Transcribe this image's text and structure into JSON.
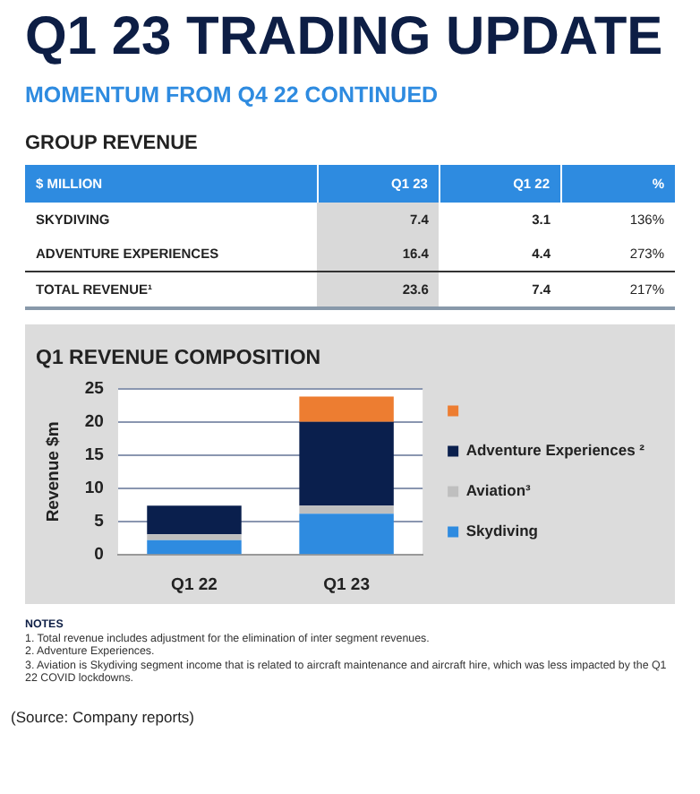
{
  "chart_data": [
    {
      "type": "other",
      "title": "Q1 23 TRADING UPDATE",
      "subtitle": "MOMENTUM FROM Q4 22 CONTINUED",
      "annotations": [
        "GROUP REVENUE"
      ],
      "categories": [
        "$ MILLION",
        "Q1 23",
        "Q1 22",
        "%"
      ],
      "y_categories": [
        "SKYDIVING",
        "ADVENTURE EXPERIENCES",
        "TOTAL REVENUE¹"
      ],
      "cell_labels": [
        [
          "7.4",
          "3.1",
          "136%"
        ],
        [
          "16.4",
          "4.4",
          "273%"
        ],
        [
          "23.6",
          "7.4",
          "217%"
        ]
      ]
    },
    {
      "type": "bar",
      "title": "Q1 REVENUE COMPOSITION",
      "ylabel": "Revenue $m",
      "categories": [
        "Q1 22",
        "Q1 23"
      ],
      "stacked": true,
      "series": [
        {
          "name": "Skydiving",
          "color": "#2e8be0",
          "values": [
            2.2,
            6.2
          ]
        },
        {
          "name": "Aviation³",
          "color": "#bfbfbf",
          "values": [
            0.9,
            1.2
          ]
        },
        {
          "name": "Adventure Experiences ²",
          "color": "#0a1f4d",
          "values": [
            4.3,
            12.6
          ]
        },
        {
          "color": "#ed7d31",
          "values": [
            0,
            3.8
          ]
        }
      ],
      "ylim": [
        0,
        25
      ],
      "yticks": [
        0,
        5,
        10,
        15,
        20,
        25
      ],
      "grid": "y",
      "legend": "right",
      "annotations": [
        "NOTES",
        "1. Total revenue includes adjustment for the elimination of inter segment revenues.",
        "2. Adventure Experiences.",
        "3. Aviation is Skydiving segment income that is related to aircraft maintenance and aircraft hire, which was less impacted by the Q1 22 COVID lockdowns.",
        "(Source: Company reports)"
      ]
    }
  ]
}
